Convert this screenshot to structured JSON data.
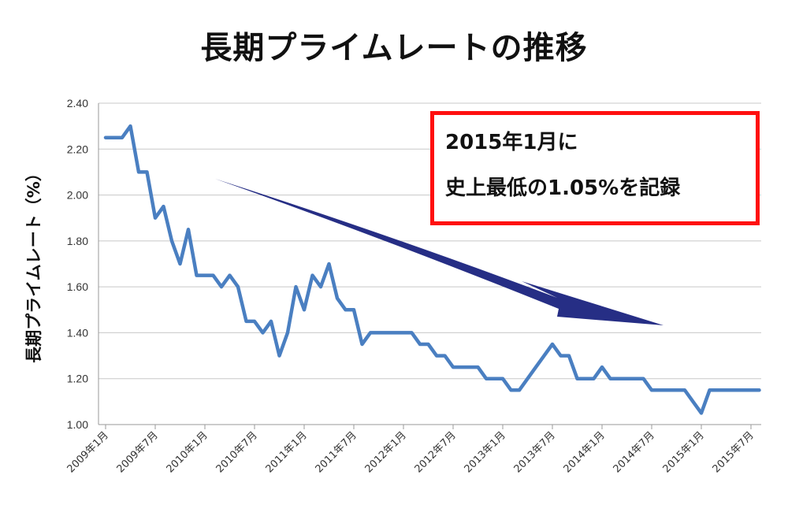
{
  "chart_data": {
    "type": "line",
    "title": "長期プライムレートの推移",
    "ylabel": "長期プライムレート（%）",
    "xlabel": "",
    "ylim": [
      1.0,
      2.4
    ],
    "yticks": [
      "1.00",
      "1.20",
      "1.40",
      "1.60",
      "1.80",
      "2.00",
      "2.20",
      "2.40"
    ],
    "xticks": [
      "2009年1月",
      "2009年7月",
      "2010年1月",
      "2010年7月",
      "2011年1月",
      "2011年7月",
      "2012年1月",
      "2012年7月",
      "2013年1月",
      "2013年7月",
      "2014年1月",
      "2014年7月",
      "2015年1月",
      "2015年7月"
    ],
    "grid": "horizontal",
    "line_color": "#4a7fc1",
    "arrow_color": "#1a237e",
    "series": [
      {
        "values": [
          2.25,
          2.25,
          2.25,
          2.3,
          2.1,
          2.1,
          1.9,
          1.95,
          1.8,
          1.7,
          1.85,
          1.65,
          1.65,
          1.65,
          1.6,
          1.65,
          1.6,
          1.45,
          1.45,
          1.4,
          1.45,
          1.3,
          1.4,
          1.6,
          1.5,
          1.65,
          1.6,
          1.7,
          1.55,
          1.5,
          1.5,
          1.35,
          1.4,
          1.4,
          1.4,
          1.4,
          1.4,
          1.4,
          1.35,
          1.35,
          1.3,
          1.3,
          1.25,
          1.25,
          1.25,
          1.25,
          1.2,
          1.2,
          1.2,
          1.15,
          1.15,
          1.2,
          1.25,
          1.3,
          1.35,
          1.3,
          1.3,
          1.2,
          1.2,
          1.2,
          1.25,
          1.2,
          1.2,
          1.2,
          1.2,
          1.2,
          1.15,
          1.15,
          1.15,
          1.15,
          1.15,
          1.1,
          1.05,
          1.15,
          1.15,
          1.15,
          1.15,
          1.15,
          1.15,
          1.15
        ]
      }
    ],
    "annotation": {
      "lines": [
        "2015年1月に",
        "史上最低の1.05%を記録"
      ],
      "border_color": "#ff1010"
    }
  }
}
